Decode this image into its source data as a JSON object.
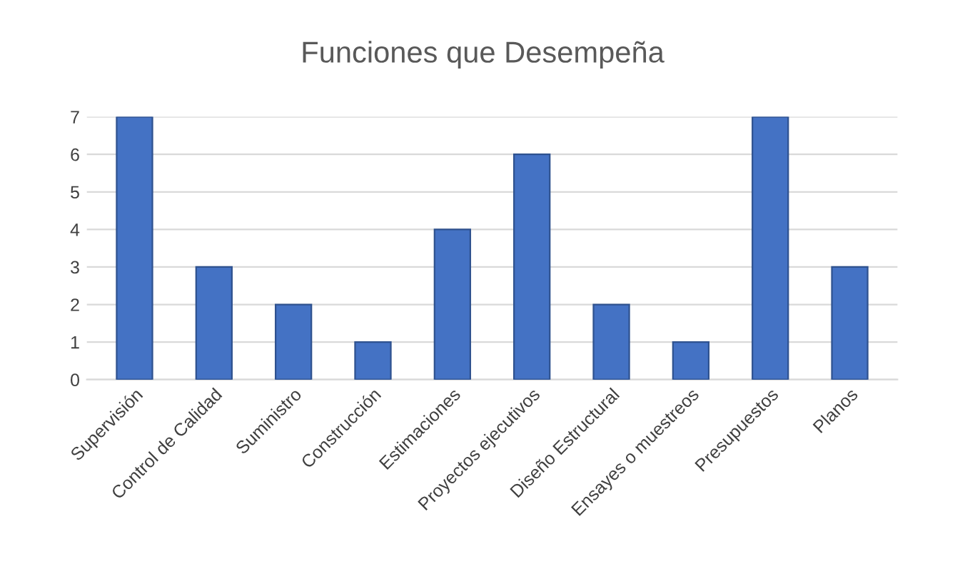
{
  "chart_data": {
    "type": "bar",
    "title": "Funciones que Desempeña",
    "categories": [
      "Supervisión",
      "Control de Calidad",
      "Suministro",
      "Construcción",
      "Estimaciones",
      "Proyectos ejecutivos",
      "Diseño Estructural",
      "Ensayes o muestreos",
      "Presupuestos",
      "Planos"
    ],
    "values": [
      7,
      3,
      2,
      1,
      4,
      6,
      2,
      1,
      7,
      3
    ],
    "color": "#4472c4",
    "ylim": [
      0,
      7
    ],
    "yticks": [
      0,
      1,
      2,
      3,
      4,
      5,
      6,
      7
    ],
    "grid": "y"
  }
}
